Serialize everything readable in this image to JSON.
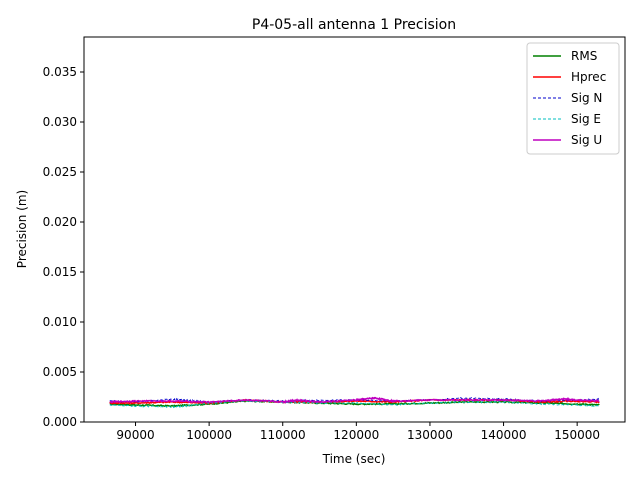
{
  "chart_data": {
    "type": "line",
    "title": "P4-05-all antenna 1 Precision",
    "xlabel": "Time (sec)",
    "ylabel": "Precision (m)",
    "xlim": [
      83000,
      156500
    ],
    "ylim": [
      0.0,
      0.0385
    ],
    "xticks": [
      90000,
      100000,
      110000,
      120000,
      130000,
      140000,
      150000
    ],
    "xtick_labels": [
      "90000",
      "100000",
      "110000",
      "120000",
      "130000",
      "140000",
      "150000"
    ],
    "yticks": [
      0.0,
      0.005,
      0.01,
      0.015,
      0.02,
      0.025,
      0.03,
      0.035
    ],
    "ytick_labels": [
      "0.000",
      "0.005",
      "0.010",
      "0.015",
      "0.020",
      "0.025",
      "0.030",
      "0.035"
    ],
    "grid": false,
    "legend_position": "top-right",
    "series": [
      {
        "name": "RMS",
        "color": "#008000",
        "style": "solid",
        "x": [
          86500,
          90000,
          95000,
          100000,
          105000,
          110000,
          115000,
          120000,
          125000,
          130000,
          135000,
          140000,
          145000,
          150000,
          153000
        ],
        "y": [
          0.0018,
          0.0017,
          0.0016,
          0.0018,
          0.0021,
          0.002,
          0.0019,
          0.0018,
          0.0018,
          0.0019,
          0.002,
          0.002,
          0.0019,
          0.0018,
          0.0017
        ]
      },
      {
        "name": "Hprec",
        "color": "#ff0000",
        "style": "solid",
        "x": [
          86500,
          90000,
          95000,
          100000,
          105000,
          110000,
          115000,
          120000,
          125000,
          130000,
          135000,
          140000,
          145000,
          150000,
          153000
        ],
        "y": [
          0.0019,
          0.0019,
          0.002,
          0.0019,
          0.0022,
          0.002,
          0.002,
          0.0021,
          0.002,
          0.0022,
          0.0022,
          0.0022,
          0.002,
          0.0021,
          0.002
        ]
      },
      {
        "name": "Sig N",
        "color": "#0000cc",
        "style": "dashed",
        "x": [
          86500,
          90000,
          95000,
          97000,
          100000,
          105000,
          110000,
          115000,
          120000,
          125000,
          130000,
          135000,
          140000,
          145000,
          150000,
          153000
        ],
        "y": [
          0.0021,
          0.002,
          0.0023,
          0.0022,
          0.002,
          0.0022,
          0.0021,
          0.0022,
          0.0022,
          0.0021,
          0.0022,
          0.0024,
          0.0023,
          0.0021,
          0.0022,
          0.0023
        ]
      },
      {
        "name": "Sig E",
        "color": "#00bfbf",
        "style": "dashed",
        "x": [
          86500,
          90000,
          95000,
          97000,
          100000,
          105000,
          110000,
          115000,
          120000,
          125000,
          130000,
          135000,
          140000,
          145000,
          150000,
          153000
        ],
        "y": [
          0.0017,
          0.0016,
          0.0015,
          0.0016,
          0.0019,
          0.0021,
          0.002,
          0.0019,
          0.0019,
          0.0017,
          0.0019,
          0.002,
          0.002,
          0.0018,
          0.0017,
          0.0016
        ]
      },
      {
        "name": "Sig U",
        "color": "#bf00bf",
        "style": "solid",
        "x": [
          86500,
          90000,
          95000,
          100000,
          105000,
          110000,
          112000,
          115000,
          120000,
          122500,
          125000,
          130000,
          135000,
          140000,
          145000,
          148000,
          150000,
          153000
        ],
        "y": [
          0.002,
          0.0021,
          0.0021,
          0.002,
          0.0022,
          0.002,
          0.0022,
          0.002,
          0.0022,
          0.0024,
          0.0021,
          0.0022,
          0.0022,
          0.0022,
          0.0021,
          0.0023,
          0.0022,
          0.0021
        ]
      }
    ]
  }
}
